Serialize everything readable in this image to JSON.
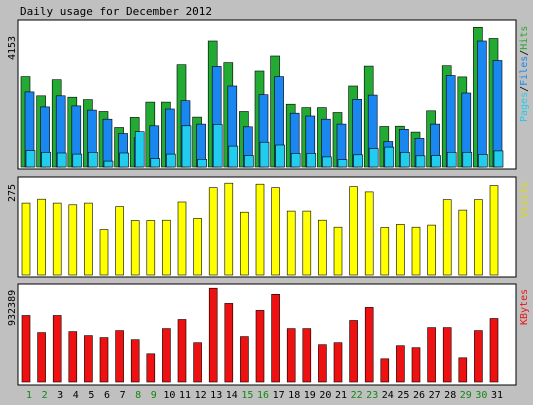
{
  "title": "Daily usage for December 2012",
  "colors": {
    "background": "#c0c0c0",
    "panel": "#ffffff",
    "hits": "#22aa33",
    "files": "#1a86f0",
    "pages": "#22ccee",
    "visits": "#ffff00",
    "kbytes": "#ee1111",
    "weekday_label": "#000000",
    "weekend_label": "#118811"
  },
  "chart_data": [
    {
      "type": "bar",
      "panel": "hits-files-pages",
      "max_label": "4153",
      "ylim": [
        0,
        4153
      ],
      "legend": [
        {
          "name": "Pages",
          "color": "#22ccee"
        },
        {
          "name": "Files",
          "color": "#1a86f0"
        },
        {
          "name": "Hits",
          "color": "#22aa33"
        }
      ],
      "categories": [
        "1",
        "2",
        "3",
        "4",
        "5",
        "6",
        "7",
        "8",
        "9",
        "10",
        "11",
        "12",
        "13",
        "14",
        "15",
        "16",
        "17",
        "18",
        "19",
        "20",
        "21",
        "22",
        "23",
        "24",
        "25",
        "26",
        "27",
        "28",
        "29",
        "30",
        "31"
      ],
      "series": [
        {
          "name": "Hits",
          "color": "#22aa33",
          "values": [
            2590,
            2040,
            2500,
            2000,
            1930,
            1590,
            1130,
            1420,
            1860,
            1860,
            2930,
            1430,
            3610,
            2990,
            1590,
            2750,
            3180,
            1800,
            1700,
            1700,
            1560,
            2320,
            2890,
            1160,
            1170,
            1000,
            1610,
            2900,
            2580,
            4000,
            3680
          ]
        },
        {
          "name": "Files",
          "color": "#1a86f0",
          "values": [
            2150,
            1720,
            2040,
            1750,
            1630,
            1370,
            960,
            840,
            1180,
            1660,
            1900,
            1230,
            2880,
            2320,
            1150,
            2070,
            2590,
            1540,
            1460,
            1370,
            1230,
            1940,
            2060,
            730,
            1080,
            820,
            1230,
            2620,
            2120,
            3610,
            3050
          ]
        },
        {
          "name": "Pages",
          "color": "#22ccee",
          "values": [
            470,
            420,
            400,
            370,
            420,
            170,
            400,
            1010,
            240,
            370,
            1180,
            220,
            1220,
            600,
            330,
            710,
            630,
            390,
            390,
            290,
            210,
            350,
            530,
            570,
            420,
            320,
            330,
            420,
            420,
            360,
            460
          ]
        }
      ]
    },
    {
      "type": "bar",
      "panel": "visits",
      "max_label": "275",
      "ylim": [
        0,
        275
      ],
      "legend": [
        {
          "name": "Visits",
          "color": "#ffff00"
        }
      ],
      "categories": [
        "1",
        "2",
        "3",
        "4",
        "5",
        "6",
        "7",
        "8",
        "9",
        "10",
        "11",
        "12",
        "13",
        "14",
        "15",
        "16",
        "17",
        "18",
        "19",
        "20",
        "21",
        "22",
        "23",
        "24",
        "25",
        "26",
        "27",
        "28",
        "29",
        "30",
        "31"
      ],
      "series": [
        {
          "name": "Visits",
          "color": "#ffff00",
          "values": [
            206,
            217,
            206,
            201,
            206,
            130,
            196,
            156,
            156,
            157,
            209,
            162,
            250,
            263,
            180,
            260,
            250,
            183,
            183,
            157,
            137,
            253,
            238,
            136,
            145,
            137,
            143,
            216,
            186,
            216,
            256
          ]
        }
      ]
    },
    {
      "type": "bar",
      "panel": "kbytes",
      "max_label": "932389",
      "ylim": [
        0,
        932389
      ],
      "legend": [
        {
          "name": "KBytes",
          "color": "#ee1111"
        }
      ],
      "categories": [
        "1",
        "2",
        "3",
        "4",
        "5",
        "6",
        "7",
        "8",
        "9",
        "10",
        "11",
        "12",
        "13",
        "14",
        "15",
        "16",
        "17",
        "18",
        "19",
        "20",
        "21",
        "22",
        "23",
        "24",
        "25",
        "26",
        "27",
        "28",
        "29",
        "30",
        "31"
      ],
      "series": [
        {
          "name": "KBytes",
          "color": "#ee1111",
          "values": [
            660000,
            490000,
            660000,
            500000,
            460000,
            440000,
            510000,
            420000,
            280000,
            530000,
            620000,
            390000,
            930000,
            780000,
            450000,
            710000,
            870000,
            530000,
            530000,
            370000,
            390000,
            610000,
            740000,
            230000,
            360000,
            340000,
            540000,
            540000,
            240000,
            510000,
            630000
          ]
        }
      ]
    }
  ],
  "x_axis": {
    "labels": [
      {
        "text": "1",
        "weekend": true
      },
      {
        "text": "2",
        "weekend": true
      },
      {
        "text": "3",
        "weekend": false
      },
      {
        "text": "4",
        "weekend": false
      },
      {
        "text": "5",
        "weekend": false
      },
      {
        "text": "6",
        "weekend": false
      },
      {
        "text": "7",
        "weekend": false
      },
      {
        "text": "8",
        "weekend": true
      },
      {
        "text": "9",
        "weekend": true
      },
      {
        "text": "10",
        "weekend": false
      },
      {
        "text": "11",
        "weekend": false
      },
      {
        "text": "12",
        "weekend": false
      },
      {
        "text": "13",
        "weekend": false
      },
      {
        "text": "14",
        "weekend": false
      },
      {
        "text": "15",
        "weekend": true
      },
      {
        "text": "16",
        "weekend": true
      },
      {
        "text": "17",
        "weekend": false
      },
      {
        "text": "18",
        "weekend": false
      },
      {
        "text": "19",
        "weekend": false
      },
      {
        "text": "20",
        "weekend": false
      },
      {
        "text": "21",
        "weekend": false
      },
      {
        "text": "22",
        "weekend": true
      },
      {
        "text": "23",
        "weekend": true
      },
      {
        "text": "24",
        "weekend": false
      },
      {
        "text": "25",
        "weekend": false
      },
      {
        "text": "26",
        "weekend": false
      },
      {
        "text": "27",
        "weekend": false
      },
      {
        "text": "28",
        "weekend": false
      },
      {
        "text": "29",
        "weekend": true
      },
      {
        "text": "30",
        "weekend": true
      },
      {
        "text": "31",
        "weekend": false
      }
    ]
  }
}
